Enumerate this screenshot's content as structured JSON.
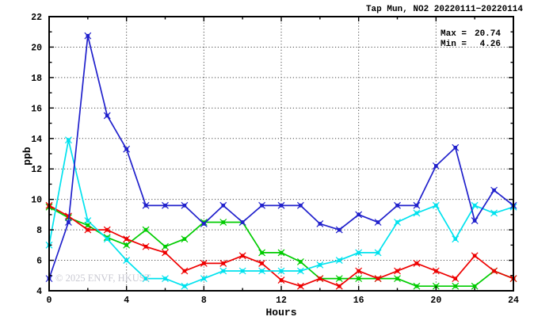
{
  "title": "Tap Mun, NO2 20220111−20220114",
  "annotation": {
    "max_label": "Max =",
    "max_value": "20.74",
    "min_label": "Min =",
    "min_value": "4.26"
  },
  "watermark": "© 2025 ENVF, HKUST",
  "chart_data": {
    "type": "line",
    "title": "Tap Mun, NO2 20220111−20220114",
    "xlabel": "Hours",
    "ylabel": "ppb",
    "xlim": [
      0,
      24
    ],
    "ylim": [
      4,
      22
    ],
    "grid": true,
    "legend": "none",
    "x_major_ticks": [
      0,
      4,
      8,
      12,
      16,
      20,
      24
    ],
    "x_minor_ticks": [
      2,
      6,
      10,
      14,
      18,
      22
    ],
    "y_major_ticks": [
      4,
      6,
      8,
      10,
      12,
      14,
      16,
      18,
      20,
      22
    ],
    "y_minor_ticks": [
      5,
      7,
      9,
      11,
      13,
      15,
      17,
      19,
      21
    ],
    "x_gridlines": [
      4,
      8,
      12,
      16,
      20
    ],
    "y_gridlines": [
      6,
      8,
      10,
      12,
      14,
      16,
      18,
      20
    ],
    "max": 20.74,
    "min": 4.26,
    "x": [
      0,
      1,
      2,
      3,
      4,
      5,
      6,
      7,
      8,
      9,
      10,
      11,
      12,
      13,
      14,
      15,
      16,
      17,
      18,
      19,
      20,
      21,
      22,
      23,
      24
    ],
    "series": [
      {
        "name": "green-series",
        "color": "#00cc00",
        "values": [
          9.5,
          8.8,
          8.3,
          7.5,
          7.0,
          8.0,
          6.9,
          7.4,
          8.5,
          8.5,
          8.5,
          6.5,
          6.5,
          5.9,
          4.8,
          4.8,
          4.8,
          4.8,
          4.8,
          4.3,
          4.3,
          4.3,
          4.3,
          5.3,
          4.8
        ]
      },
      {
        "name": "red-series",
        "color": "#ee0000",
        "values": [
          9.6,
          8.9,
          8.0,
          8.0,
          7.4,
          6.9,
          6.5,
          5.3,
          5.8,
          5.8,
          6.3,
          5.8,
          4.7,
          4.3,
          4.8,
          4.3,
          5.3,
          4.8,
          5.3,
          5.8,
          5.3,
          4.8,
          6.3,
          5.3,
          4.8
        ]
      },
      {
        "name": "cyan-series",
        "color": "#00e2ee",
        "values": [
          7.0,
          13.9,
          8.6,
          7.4,
          6.0,
          4.8,
          4.8,
          4.3,
          4.8,
          5.3,
          5.3,
          5.3,
          5.3,
          5.3,
          5.7,
          6.0,
          6.5,
          6.5,
          8.5,
          9.1,
          9.6,
          7.4,
          9.6,
          9.1,
          9.5
        ]
      },
      {
        "name": "blue-series",
        "color": "#2020cc",
        "values": [
          4.8,
          8.5,
          20.74,
          15.5,
          13.3,
          9.6,
          9.6,
          9.6,
          8.4,
          9.6,
          8.5,
          9.6,
          9.6,
          9.6,
          8.4,
          8.0,
          9.0,
          8.5,
          9.6,
          9.6,
          12.2,
          13.4,
          8.6,
          10.6,
          9.6
        ]
      }
    ]
  }
}
